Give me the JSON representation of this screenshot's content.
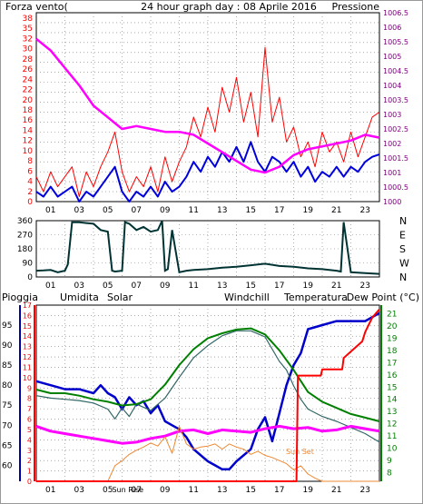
{
  "colors": {
    "wind": "#ff0000",
    "gust": "#ff0000",
    "wind_avg": "#0000dd",
    "pressure": "#ff00ff",
    "direction": "#003333",
    "humidity": "#0000cc",
    "solar": "#ee8833",
    "windchill": "#336666",
    "temperature": "#008000",
    "dewpoint": "#ff00ff",
    "rain": "#ff0000",
    "grid": "#777777",
    "axis_blue": "#0000aa",
    "axis_red": "#ff0000",
    "axis_green": "#008000",
    "title": "#000080"
  },
  "chart_data": [
    {
      "type": "line",
      "title": "24 hour graph day : 08 Aprile 2016",
      "left_label": "Forza vento(",
      "right_label": "Pressione",
      "x_ticks": [
        "01",
        "03",
        "05",
        "07",
        "09",
        "11",
        "13",
        "15",
        "17",
        "19",
        "21",
        "23"
      ],
      "y_left_ticks": [
        "0",
        "2",
        "4",
        "6",
        "8",
        "10",
        "12",
        "14",
        "16",
        "18",
        "20",
        "22",
        "24",
        "26",
        "28",
        "30",
        "32",
        "35",
        "38"
      ],
      "y_right_ticks": [
        "1000",
        "1000.5",
        "1001",
        "1001.5",
        "1002",
        "1002.5",
        "1003",
        "1003.5",
        "1004",
        "1004.5",
        "1005",
        "1005.5",
        "1006",
        "1006.5"
      ],
      "ylim_left": [
        0,
        38
      ],
      "ylim_right": [
        1000,
        1006.5
      ],
      "xlim": [
        0,
        24
      ],
      "series": [
        {
          "name": "gust",
          "axis": "left",
          "x": [
            0,
            0.5,
            1,
            1.5,
            2,
            2.5,
            3,
            3.5,
            4,
            4.5,
            5,
            5.5,
            6,
            6.5,
            7,
            7.5,
            8,
            8.5,
            9,
            9.5,
            10,
            10.5,
            11,
            11.5,
            12,
            12.5,
            13,
            13.5,
            14,
            14.5,
            15,
            15.5,
            16,
            16.5,
            17,
            17.5,
            18,
            18.5,
            19,
            19.5,
            20,
            20.5,
            21,
            21.5,
            22,
            22.5,
            23,
            23.5,
            24
          ],
          "y": [
            5,
            2,
            6,
            3,
            5,
            7,
            1,
            6,
            3,
            7,
            10,
            14,
            6,
            2,
            5,
            3,
            7,
            2,
            9,
            4,
            8,
            11,
            17,
            13,
            19,
            14,
            23,
            18,
            25,
            16,
            22,
            13,
            31,
            16,
            21,
            12,
            15,
            9,
            12,
            7,
            14,
            10,
            12,
            8,
            14,
            9,
            13,
            17,
            18
          ]
        },
        {
          "name": "wind_avg",
          "axis": "left",
          "x": [
            0,
            0.5,
            1,
            1.5,
            2,
            2.5,
            3,
            3.5,
            4,
            4.5,
            5,
            5.5,
            6,
            6.5,
            7,
            7.5,
            8,
            8.5,
            9,
            9.5,
            10,
            10.5,
            11,
            11.5,
            12,
            12.5,
            13,
            13.5,
            14,
            14.5,
            15,
            15.5,
            16,
            16.5,
            17,
            17.5,
            18,
            18.5,
            19,
            19.5,
            20,
            20.5,
            21,
            21.5,
            22,
            22.5,
            23,
            23.5,
            24
          ],
          "y": [
            2,
            1,
            3,
            1,
            2,
            3,
            0,
            2,
            1,
            3,
            5,
            7,
            2,
            0,
            2,
            1,
            3,
            1,
            4,
            2,
            3,
            5,
            8,
            6,
            9,
            7,
            10,
            8,
            11,
            8,
            12,
            8,
            6,
            9,
            8,
            6,
            8,
            5,
            7,
            4,
            6,
            5,
            7,
            5,
            7,
            6,
            8,
            9,
            9.5
          ]
        },
        {
          "name": "pressure",
          "axis": "right",
          "x": [
            0,
            1,
            2,
            3,
            4,
            5,
            6,
            7,
            8,
            9,
            10,
            11,
            12,
            13,
            14,
            15,
            16,
            17,
            18,
            19,
            20,
            21,
            22,
            23,
            24
          ],
          "y": [
            1005.6,
            1005.2,
            1004.6,
            1004.0,
            1003.3,
            1002.9,
            1002.5,
            1002.6,
            1002.5,
            1002.4,
            1002.4,
            1002.3,
            1002.0,
            1001.7,
            1001.4,
            1001.1,
            1001.0,
            1001.2,
            1001.6,
            1001.8,
            1001.9,
            1002.0,
            1002.1,
            1002.3,
            1002.2
          ]
        }
      ]
    },
    {
      "type": "line",
      "title": "",
      "x_ticks": [
        "01",
        "03",
        "05",
        "07",
        "09",
        "11",
        "13",
        "15",
        "17",
        "19",
        "21",
        "23"
      ],
      "y_left_ticks": [
        "0",
        "90",
        "180",
        "270",
        "360"
      ],
      "compass": [
        "N",
        "W",
        "S",
        "E",
        "N"
      ],
      "ylim": [
        0,
        360
      ],
      "xlim": [
        0,
        24
      ],
      "series": [
        {
          "name": "direction",
          "x": [
            0,
            0.5,
            1,
            1.5,
            2,
            2.2,
            2.5,
            3,
            3.5,
            4,
            4.5,
            5,
            5.3,
            5.5,
            6,
            6.2,
            6.5,
            7,
            7.5,
            8,
            8.5,
            8.8,
            9,
            9.2,
            9.5,
            10,
            10.5,
            11,
            12,
            13,
            14,
            15,
            16,
            17,
            18,
            19,
            20,
            21,
            21.3,
            21.5,
            22,
            23,
            24
          ],
          "y": [
            40,
            42,
            45,
            30,
            40,
            80,
            350,
            350,
            345,
            340,
            300,
            290,
            40,
            35,
            40,
            350,
            340,
            300,
            320,
            290,
            300,
            360,
            40,
            50,
            300,
            30,
            40,
            45,
            50,
            60,
            65,
            75,
            85,
            70,
            65,
            55,
            50,
            40,
            35,
            350,
            30,
            25,
            20
          ]
        }
      ]
    },
    {
      "type": "line",
      "title": "",
      "labels": {
        "rain": "Pioggia",
        "humidity": "Umidita",
        "solar": "Solar",
        "windchill": "Windchill",
        "temperature": "Temperatura",
        "dewpoint": "Dew Point (°C)"
      },
      "annotations": [
        "Sun Rise",
        "Sun Set"
      ],
      "x_ticks": [
        "01",
        "03",
        "05",
        "07",
        "09",
        "11",
        "13",
        "15",
        "17",
        "19",
        "21",
        "23"
      ],
      "y_rain_ticks": [
        "0",
        "1",
        "2",
        "3",
        "4",
        "5",
        "6",
        "7",
        "8",
        "9",
        "10",
        "11",
        "12",
        "13",
        "14",
        "15",
        "16",
        "17"
      ],
      "y_humidity_ticks": [
        "60",
        "65",
        "70",
        "75",
        "80",
        "85",
        "90",
        "95"
      ],
      "y_temp_ticks": [
        "8",
        "9",
        "10",
        "11",
        "12",
        "13",
        "14",
        "15",
        "16",
        "17",
        "18",
        "19",
        "20",
        "21"
      ],
      "ylim_rain": [
        0,
        17
      ],
      "ylim_humidity": [
        56,
        100
      ],
      "ylim_temp": [
        7.3,
        21.7
      ],
      "xlim": [
        0,
        24
      ],
      "series": [
        {
          "name": "humidity",
          "axis": "humidity",
          "x": [
            0,
            1,
            2,
            3,
            4,
            4.5,
            5,
            5.5,
            6,
            6.5,
            7,
            7.5,
            8,
            8.5,
            9,
            9.5,
            10,
            10.5,
            11,
            12,
            12.5,
            13,
            13.5,
            14,
            15,
            15.5,
            16,
            16.5,
            17,
            17.5,
            18,
            18.5,
            19,
            20,
            21,
            22,
            23,
            23.5,
            24
          ],
          "y": [
            81,
            80,
            79,
            79,
            78,
            80,
            78,
            77,
            74,
            77,
            75,
            76,
            73,
            75,
            71,
            70,
            69,
            67,
            64,
            61,
            60,
            59,
            59,
            61,
            64,
            69,
            72,
            66,
            73,
            80,
            85,
            88,
            94,
            95,
            96,
            96,
            96,
            97,
            98
          ]
        },
        {
          "name": "windchill",
          "axis": "temp",
          "x": [
            0,
            1,
            2,
            3,
            4,
            5,
            5.5,
            6,
            6.5,
            7,
            8,
            9,
            10,
            11,
            12,
            13,
            14,
            15,
            16,
            17,
            17.5,
            18,
            18.5,
            19,
            20,
            21,
            22,
            23,
            24
          ],
          "y": [
            14.3,
            14.1,
            14.0,
            13.9,
            13.7,
            13.2,
            12.4,
            13.3,
            12.6,
            13.6,
            13.1,
            14.1,
            15.8,
            17.4,
            18.4,
            19.2,
            19.6,
            19.6,
            19.1,
            17.1,
            16.4,
            15.1,
            14.0,
            13.2,
            12.6,
            12.2,
            11.7,
            11.2,
            10.5
          ]
        },
        {
          "name": "temperature",
          "axis": "temp",
          "x": [
            0,
            1,
            2,
            3,
            4,
            5,
            6,
            7,
            8,
            9,
            10,
            11,
            12,
            13,
            14,
            15,
            16,
            17,
            18,
            19,
            20,
            21,
            22,
            23,
            24
          ],
          "y": [
            14.8,
            14.5,
            14.5,
            14.3,
            14.0,
            13.8,
            13.5,
            13.6,
            14.0,
            15.2,
            16.8,
            18.1,
            19.0,
            19.4,
            19.7,
            19.8,
            19.3,
            18.0,
            16.4,
            14.6,
            13.8,
            13.3,
            12.8,
            12.5,
            12.2
          ]
        },
        {
          "name": "dewpoint",
          "axis": "temp",
          "x": [
            0,
            1,
            2,
            3,
            4,
            5,
            6,
            7,
            8,
            9,
            10,
            11,
            12,
            13,
            14,
            15,
            16,
            17,
            18,
            19,
            20,
            21,
            22,
            23,
            24
          ],
          "y": [
            11.8,
            11.4,
            11.2,
            11.0,
            10.8,
            10.6,
            10.4,
            10.5,
            10.8,
            11.0,
            11.4,
            11.5,
            11.2,
            11.5,
            11.4,
            11.3,
            11.6,
            11.8,
            11.6,
            11.7,
            11.4,
            11.5,
            11.8,
            11.6,
            11.4
          ]
        },
        {
          "name": "solar",
          "axis": "rain",
          "x": [
            0,
            5,
            5.5,
            6,
            6.5,
            7,
            7.5,
            8,
            8.5,
            9,
            9.5,
            10,
            10.5,
            11,
            11.5,
            12,
            12.5,
            13,
            13.5,
            14,
            14.5,
            15,
            15.5,
            16,
            16.5,
            17,
            17.5,
            18,
            18.5,
            19,
            19.5,
            20,
            24
          ],
          "y": [
            0,
            0,
            1.5,
            2.0,
            2.6,
            3.0,
            3.3,
            3.7,
            3.4,
            4.3,
            2.7,
            5.3,
            3.6,
            3.1,
            3.3,
            3.4,
            3.6,
            3.1,
            3.6,
            3.3,
            3.1,
            2.6,
            2.9,
            2.5,
            2.3,
            2.0,
            1.7,
            1.1,
            1.5,
            0.7,
            0.3,
            0,
            0
          ]
        },
        {
          "name": "rain",
          "axis": "rain",
          "x": [
            0,
            18.2,
            18.3,
            19.9,
            20.0,
            21.4,
            21.5,
            22.8,
            23,
            23.5,
            24
          ],
          "y": [
            0,
            0,
            10.2,
            10.2,
            10.8,
            10.8,
            11.9,
            13.5,
            14.4,
            15.8,
            16.6
          ]
        }
      ]
    }
  ]
}
